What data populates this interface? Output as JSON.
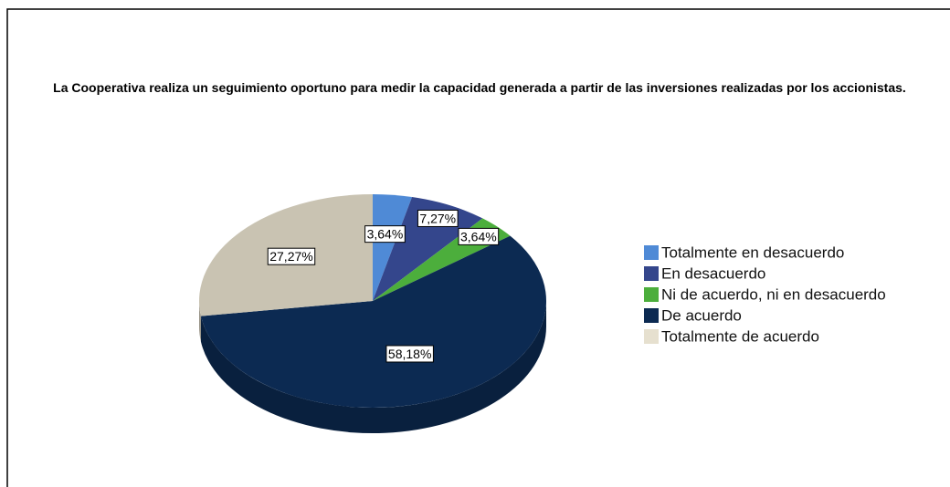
{
  "chart_data": {
    "type": "pie",
    "title": "La Cooperativa realiza un seguimiento oportuno para medir la capacidad generada a partir de las inversiones realizadas por los accionistas.",
    "categories": [
      "Totalmente en desacuerdo",
      "En desacuerdo",
      "Ni de acuerdo, ni en desacuerdo",
      "De acuerdo",
      "Totalmente de acuerdo"
    ],
    "values": [
      3.64,
      7.27,
      3.64,
      58.18,
      27.27
    ],
    "value_labels": [
      "3,64%",
      "7,27%",
      "3,64%",
      "58,18%",
      "27,27%"
    ],
    "colors": [
      "#4f8ad6",
      "#34468c",
      "#4cae3c",
      "#0c2a52",
      "#c9c3b2"
    ],
    "legend": "right"
  }
}
